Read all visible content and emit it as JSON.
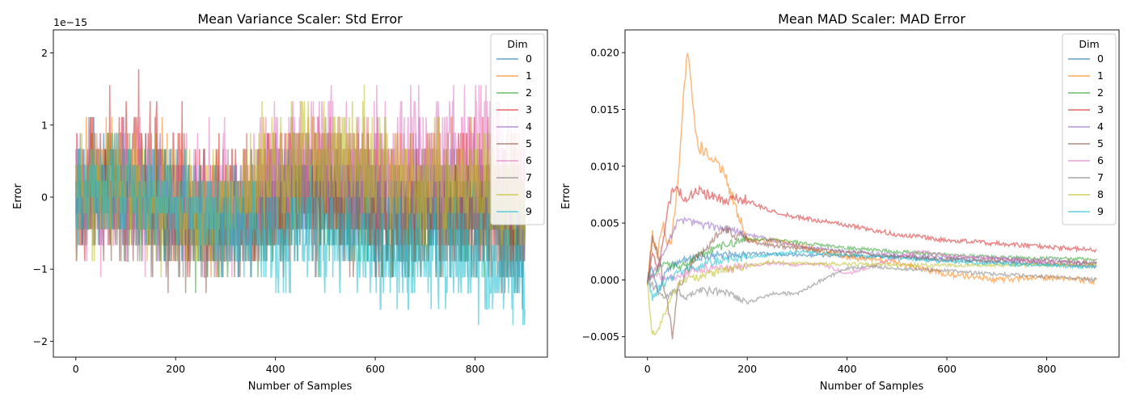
{
  "palette": [
    "#1f77b4",
    "#ff7f0e",
    "#2ca02c",
    "#d62728",
    "#9467bd",
    "#8c564b",
    "#e377c2",
    "#7f7f7f",
    "#bcbd22",
    "#17becf"
  ],
  "chart_data": [
    {
      "type": "line",
      "title": "Mean Variance Scaler: Std Error",
      "xlabel": "Number of Samples",
      "ylabel": "Error",
      "offset_label": "1e−15",
      "xlim": [
        -45,
        945
      ],
      "ylim": [
        -2.22,
        2.32
      ],
      "xticks": [
        0,
        200,
        400,
        600,
        800
      ],
      "yticks": [
        -2,
        -1,
        0,
        1,
        2
      ],
      "ytick_labels": [
        "−2",
        "−1",
        "0",
        "1",
        "2"
      ],
      "legend_title": "Dim",
      "legend_loc": "upper right",
      "series": [
        {
          "name": "0",
          "x": [
            0,
            50,
            100,
            150,
            200,
            250,
            300,
            350,
            400,
            450,
            500,
            550,
            600,
            650,
            700,
            750,
            800,
            850,
            900
          ],
          "y": [
            0,
            0.2,
            0.1,
            0.0,
            -0.2,
            -0.3,
            -0.3,
            -0.1,
            0.0,
            0.1,
            0.1,
            0.0,
            -0.2,
            -0.3,
            -0.2,
            -0.1,
            -0.2,
            -0.3,
            -0.5
          ],
          "noise": 0.35
        },
        {
          "name": "1",
          "x": [
            0,
            50,
            100,
            150,
            200,
            250,
            300,
            350,
            400,
            450,
            500,
            550,
            600,
            650,
            700,
            750,
            800,
            850,
            900
          ],
          "y": [
            0,
            0.2,
            0.2,
            0.1,
            -0.1,
            -0.2,
            -0.2,
            0.0,
            0.2,
            0.4,
            0.4,
            0.3,
            0.2,
            0.2,
            0.3,
            0.3,
            0.3,
            0.2,
            0.0
          ],
          "noise": 0.4
        },
        {
          "name": "2",
          "x": [
            0,
            50,
            100,
            150,
            200,
            250,
            300,
            350,
            400,
            450,
            500,
            550,
            600,
            650,
            700,
            750,
            800,
            850,
            900
          ],
          "y": [
            0,
            0.1,
            0.0,
            -0.1,
            -0.3,
            -0.4,
            -0.4,
            -0.3,
            -0.2,
            -0.1,
            -0.1,
            -0.2,
            -0.3,
            -0.3,
            -0.2,
            -0.2,
            -0.3,
            -0.3,
            -0.4
          ],
          "noise": 0.35
        },
        {
          "name": "3",
          "x": [
            0,
            50,
            100,
            150,
            200,
            250,
            300,
            350,
            400,
            450,
            500,
            550,
            600,
            650,
            700,
            750,
            800,
            850,
            900
          ],
          "y": [
            0,
            0.3,
            0.5,
            0.4,
            0.1,
            -0.1,
            -0.2,
            -0.1,
            0.0,
            0.2,
            0.2,
            0.1,
            0.0,
            0.0,
            0.1,
            0.1,
            0.1,
            0.0,
            -0.2
          ],
          "noise": 0.45
        },
        {
          "name": "4",
          "x": [
            0,
            50,
            100,
            150,
            200,
            250,
            300,
            350,
            400,
            450,
            500,
            550,
            600,
            650,
            700,
            750,
            800,
            850,
            900
          ],
          "y": [
            0,
            0.1,
            0.1,
            0.0,
            -0.1,
            -0.2,
            -0.2,
            0.0,
            0.2,
            0.3,
            0.3,
            0.2,
            0.1,
            0.1,
            0.2,
            0.2,
            0.2,
            0.1,
            0.0
          ],
          "noise": 0.35
        },
        {
          "name": "5",
          "x": [
            0,
            50,
            100,
            150,
            200,
            250,
            300,
            350,
            400,
            450,
            500,
            550,
            600,
            650,
            700,
            750,
            800,
            850,
            900
          ],
          "y": [
            0,
            0.1,
            0.0,
            -0.1,
            -0.3,
            -0.4,
            -0.4,
            -0.3,
            -0.1,
            0.0,
            0.0,
            -0.1,
            -0.3,
            -0.4,
            -0.4,
            -0.5,
            -0.5,
            -0.6,
            -0.6
          ],
          "noise": 0.4
        },
        {
          "name": "6",
          "x": [
            0,
            50,
            100,
            150,
            200,
            250,
            300,
            350,
            400,
            450,
            500,
            550,
            600,
            650,
            700,
            750,
            800,
            850,
            900
          ],
          "y": [
            0,
            0.1,
            0.1,
            0.0,
            -0.2,
            -0.2,
            -0.1,
            0.1,
            0.4,
            0.6,
            0.6,
            0.5,
            0.4,
            0.4,
            0.5,
            0.7,
            0.8,
            0.6,
            0.3
          ],
          "noise": 0.45
        },
        {
          "name": "7",
          "x": [
            0,
            50,
            100,
            150,
            200,
            250,
            300,
            350,
            400,
            450,
            500,
            550,
            600,
            650,
            700,
            750,
            800,
            850,
            900
          ],
          "y": [
            0,
            0.0,
            -0.1,
            -0.2,
            -0.3,
            -0.4,
            -0.3,
            -0.2,
            -0.1,
            0.0,
            0.1,
            0.0,
            -0.1,
            -0.2,
            -0.2,
            -0.3,
            -0.3,
            -0.4,
            -0.6
          ],
          "noise": 0.35
        },
        {
          "name": "8",
          "x": [
            0,
            50,
            100,
            150,
            200,
            250,
            300,
            350,
            400,
            450,
            500,
            550,
            600,
            650,
            700,
            750,
            800,
            850,
            900
          ],
          "y": [
            0,
            0.1,
            0.1,
            0.0,
            -0.1,
            -0.2,
            -0.1,
            0.1,
            0.3,
            0.5,
            0.6,
            0.5,
            0.3,
            0.2,
            0.2,
            0.2,
            0.2,
            0.1,
            0.0
          ],
          "noise": 0.4
        },
        {
          "name": "9",
          "x": [
            0,
            50,
            100,
            150,
            200,
            250,
            300,
            350,
            400,
            450,
            500,
            550,
            600,
            650,
            700,
            750,
            800,
            850,
            900
          ],
          "y": [
            0,
            0.1,
            0.1,
            0.1,
            -0.1,
            -0.3,
            -0.4,
            -0.5,
            -0.6,
            -0.5,
            -0.5,
            -0.6,
            -0.9,
            -0.8,
            -0.8,
            -0.8,
            -0.9,
            -1.0,
            -1.2
          ],
          "noise": 0.35
        }
      ]
    },
    {
      "type": "line",
      "title": "Mean MAD Scaler: MAD Error",
      "xlabel": "Number of Samples",
      "ylabel": "Error",
      "xlim": [
        -45,
        945
      ],
      "ylim": [
        -0.0068,
        0.022
      ],
      "xticks": [
        0,
        200,
        400,
        600,
        800
      ],
      "yticks": [
        -0.005,
        0.0,
        0.005,
        0.01,
        0.015,
        0.02
      ],
      "ytick_labels": [
        "−0.005",
        "0.000",
        "0.005",
        "0.010",
        "0.015",
        "0.020"
      ],
      "legend_title": "Dim",
      "legend_loc": "upper right",
      "series": [
        {
          "name": "0",
          "x": [
            0,
            10,
            20,
            30,
            40,
            60,
            80,
            100,
            150,
            200,
            250,
            300,
            400,
            500,
            600,
            700,
            800,
            900
          ],
          "y": [
            0,
            0.001,
            -0.001,
            0.0,
            0.001,
            0.0015,
            0.0018,
            0.002,
            0.0022,
            0.0023,
            0.0023,
            0.0022,
            0.0021,
            0.002,
            0.0018,
            0.0016,
            0.0014,
            0.0012
          ],
          "noise": 0.0003
        },
        {
          "name": "1",
          "x": [
            0,
            10,
            20,
            30,
            40,
            50,
            60,
            70,
            80,
            90,
            100,
            120,
            140,
            160,
            180,
            200,
            250,
            300,
            400,
            500,
            600,
            700,
            800,
            900
          ],
          "y": [
            0,
            0.004,
            0.002,
            0.005,
            0.003,
            0.004,
            0.008,
            0.015,
            0.02,
            0.016,
            0.012,
            0.011,
            0.0105,
            0.0085,
            0.006,
            0.0035,
            0.0035,
            0.003,
            0.002,
            0.0015,
            0.0005,
            0.0,
            0.0002,
            -0.0001
          ],
          "noise": 0.0005
        },
        {
          "name": "2",
          "x": [
            0,
            20,
            40,
            60,
            80,
            100,
            120,
            150,
            200,
            250,
            300,
            400,
            500,
            600,
            700,
            800,
            900
          ],
          "y": [
            0,
            0.001,
            0.0015,
            0.001,
            0.0015,
            0.002,
            0.0025,
            0.003,
            0.0036,
            0.0035,
            0.0033,
            0.0028,
            0.0025,
            0.0022,
            0.002,
            0.0019,
            0.0018
          ],
          "noise": 0.0003
        },
        {
          "name": "3",
          "x": [
            0,
            10,
            20,
            30,
            40,
            50,
            60,
            80,
            100,
            120,
            150,
            180,
            200,
            250,
            300,
            400,
            500,
            600,
            700,
            800,
            900
          ],
          "y": [
            0,
            0.002,
            0.001,
            0.003,
            0.006,
            0.008,
            0.008,
            0.007,
            0.008,
            0.0075,
            0.007,
            0.0072,
            0.007,
            0.006,
            0.0055,
            0.0048,
            0.004,
            0.0035,
            0.0032,
            0.0029,
            0.0026
          ],
          "noise": 0.0004
        },
        {
          "name": "4",
          "x": [
            0,
            20,
            40,
            60,
            80,
            100,
            150,
            200,
            250,
            300,
            400,
            500,
            600,
            700,
            800,
            900
          ],
          "y": [
            0,
            0.001,
            0.003,
            0.0052,
            0.0052,
            0.005,
            0.0045,
            0.004,
            0.0035,
            0.003,
            0.0025,
            0.0022,
            0.002,
            0.0019,
            0.0017,
            0.0014
          ],
          "noise": 0.0003
        },
        {
          "name": "5",
          "x": [
            0,
            10,
            20,
            30,
            40,
            50,
            60,
            80,
            100,
            120,
            150,
            200,
            250,
            300,
            400,
            500,
            600,
            700,
            800,
            900
          ],
          "y": [
            0,
            0.0035,
            0.0025,
            0.0,
            -0.002,
            -0.005,
            -0.001,
            0.001,
            0.002,
            0.003,
            0.0045,
            0.0035,
            0.003,
            0.0028,
            0.0024,
            0.002,
            0.0018,
            0.0017,
            0.0016,
            0.0015
          ],
          "noise": 0.0004
        },
        {
          "name": "6",
          "x": [
            0,
            20,
            40,
            60,
            80,
            100,
            150,
            200,
            250,
            300,
            350,
            400,
            450,
            500,
            550,
            600,
            650,
            700,
            800,
            900
          ],
          "y": [
            0,
            0.0005,
            0.0,
            0.0003,
            0.0005,
            0.001,
            0.001,
            0.0012,
            0.0015,
            0.0013,
            0.0014,
            0.0005,
            0.0012,
            0.002,
            0.0025,
            0.0022,
            0.002,
            0.0019,
            0.0015,
            0.0012
          ],
          "noise": 0.0003
        },
        {
          "name": "7",
          "x": [
            0,
            20,
            40,
            60,
            80,
            100,
            150,
            200,
            250,
            300,
            350,
            400,
            450,
            500,
            600,
            700,
            800,
            900
          ],
          "y": [
            0,
            -0.001,
            -0.0015,
            -0.001,
            -0.0015,
            -0.001,
            -0.001,
            -0.002,
            -0.0012,
            -0.0012,
            0.0,
            0.001,
            0.0012,
            0.001,
            0.0008,
            0.0005,
            0.0003,
            0.0
          ],
          "noise": 0.0003
        },
        {
          "name": "8",
          "x": [
            0,
            5,
            10,
            20,
            30,
            40,
            50,
            60,
            80,
            100,
            150,
            200,
            250,
            300,
            400,
            500,
            600,
            700,
            800,
            900
          ],
          "y": [
            0,
            -0.003,
            -0.0048,
            -0.0045,
            -0.0035,
            -0.0025,
            -0.0015,
            -0.0005,
            0.0,
            0.0002,
            0.0008,
            0.0012,
            0.0016,
            0.0014,
            0.0014,
            0.0013,
            0.0013,
            0.0013,
            0.0013,
            0.0013
          ],
          "noise": 0.0003
        },
        {
          "name": "9",
          "x": [
            0,
            10,
            20,
            40,
            60,
            80,
            100,
            150,
            200,
            250,
            300,
            400,
            500,
            600,
            700,
            800,
            900
          ],
          "y": [
            0,
            -0.0015,
            -0.001,
            0.0,
            0.0005,
            0.001,
            0.0012,
            0.0018,
            0.002,
            0.0022,
            0.0025,
            0.0022,
            0.0019,
            0.0016,
            0.0014,
            0.0013,
            0.0011
          ],
          "noise": 0.0003
        }
      ]
    }
  ]
}
